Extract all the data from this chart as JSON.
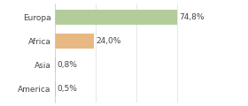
{
  "categories": [
    "Europa",
    "Africa",
    "Asia",
    "America"
  ],
  "values": [
    74.8,
    24.0,
    0.8,
    0.5
  ],
  "labels": [
    "74,8%",
    "24,0%",
    "0,8%",
    "0,5%"
  ],
  "bar_colors": [
    "#b2cc9b",
    "#e8b882",
    "#9ab8d8",
    "#9ab8d8"
  ],
  "background_color": "#ffffff",
  "xlim": [
    0,
    100
  ],
  "label_fontsize": 6.5,
  "tick_fontsize": 6.5,
  "bar_height": 0.62,
  "grid_color": "#dddddd",
  "text_color": "#444444"
}
